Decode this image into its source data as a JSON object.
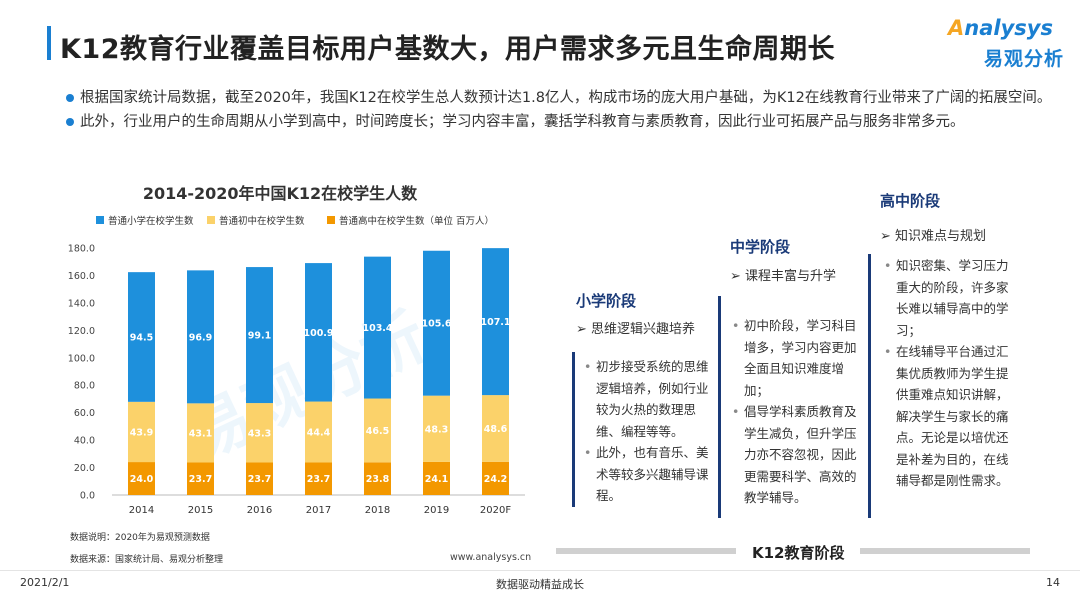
{
  "header": {
    "title": "K12教育行业覆盖目标用户基数大，用户需求多元且生命周期长",
    "logo_text_a": "A",
    "logo_text_rest": "nalysys",
    "logo_cn": "易观分析"
  },
  "intro": {
    "bullets": [
      "根据国家统计局数据，截至2020年，我国K12在校学生总人数预计达1.8亿人，构成市场的庞大用户基础，为K12在线教育行业带来了广阔的拓展空间。",
      "此外，行业用户的生命周期从小学到高中，时间跨度长；学习内容丰富，囊括学科教育与素质教育，因此行业可拓展产品与服务非常多元。"
    ]
  },
  "chart_data": {
    "type": "bar",
    "stacked": true,
    "title": "2014-2020年中国K12在校学生人数",
    "categories": [
      "2014",
      "2015",
      "2016",
      "2017",
      "2018",
      "2019",
      "2020F"
    ],
    "series": [
      {
        "name": "普通高中在校学生数（单位 百万人）",
        "values": [
          24.0,
          23.7,
          23.7,
          23.7,
          23.8,
          24.1,
          24.2
        ],
        "color": "#f39800"
      },
      {
        "name": "普通初中在校学生数",
        "values": [
          43.9,
          43.1,
          43.3,
          44.4,
          46.5,
          48.3,
          48.6
        ],
        "color": "#fbd26a"
      },
      {
        "name": "普通小学在校学生数",
        "values": [
          94.5,
          96.9,
          99.1,
          100.9,
          103.4,
          105.6,
          107.1
        ],
        "color": "#1e90dc"
      }
    ],
    "legend_order": [
      "普通小学在校学生数",
      "普通初中在校学生数",
      "普通高中在校学生数（单位 百万人）"
    ],
    "ylim": [
      0,
      180
    ],
    "yticks": [
      "0.0",
      "20.0",
      "40.0",
      "60.0",
      "80.0",
      "100.0",
      "120.0",
      "140.0",
      "160.0",
      "180.0"
    ],
    "grid": false,
    "legend_position": "top-left",
    "watermark": "易观分析"
  },
  "notes": {
    "note": "数据说明：2020年为易观预测数据",
    "source": "数据来源：国家统计局、易观分析整理",
    "site": "www.analysys.cn"
  },
  "stages": [
    {
      "heading": "小学阶段",
      "sub": "➢ 思维逻辑兴趣培养",
      "items": [
        "初步接受系统的思维逻辑培养，例如行业较为火热的数理思维、编程等等。",
        "此外，也有音乐、美术等较多兴趣辅导课程。"
      ]
    },
    {
      "heading": "中学阶段",
      "sub": "➢ 课程丰富与升学",
      "items": [
        "初中阶段，学习科目增多，学习内容更加全面且知识难度增加；",
        "倡导学科素质教育及学生减负，但升学压力亦不容忽视，因此更需要科学、高效的教学辅导。"
      ]
    },
    {
      "heading": "高中阶段",
      "sub": "➢ 知识难点与规划",
      "items": [
        "知识密集、学习压力重大的阶段，许多家长难以辅导高中的学习；",
        "在线辅导平台通过汇集优质教师为学生提供重难点知识讲解，解决学生与家长的痛点。无论是以培优还是补差为目的，在线辅导都是刚性需求。"
      ]
    }
  ],
  "stage_axis_label": "K12教育阶段",
  "footer": {
    "date": "2021/2/1",
    "center": "数据驱动精益成长",
    "page": "14"
  }
}
